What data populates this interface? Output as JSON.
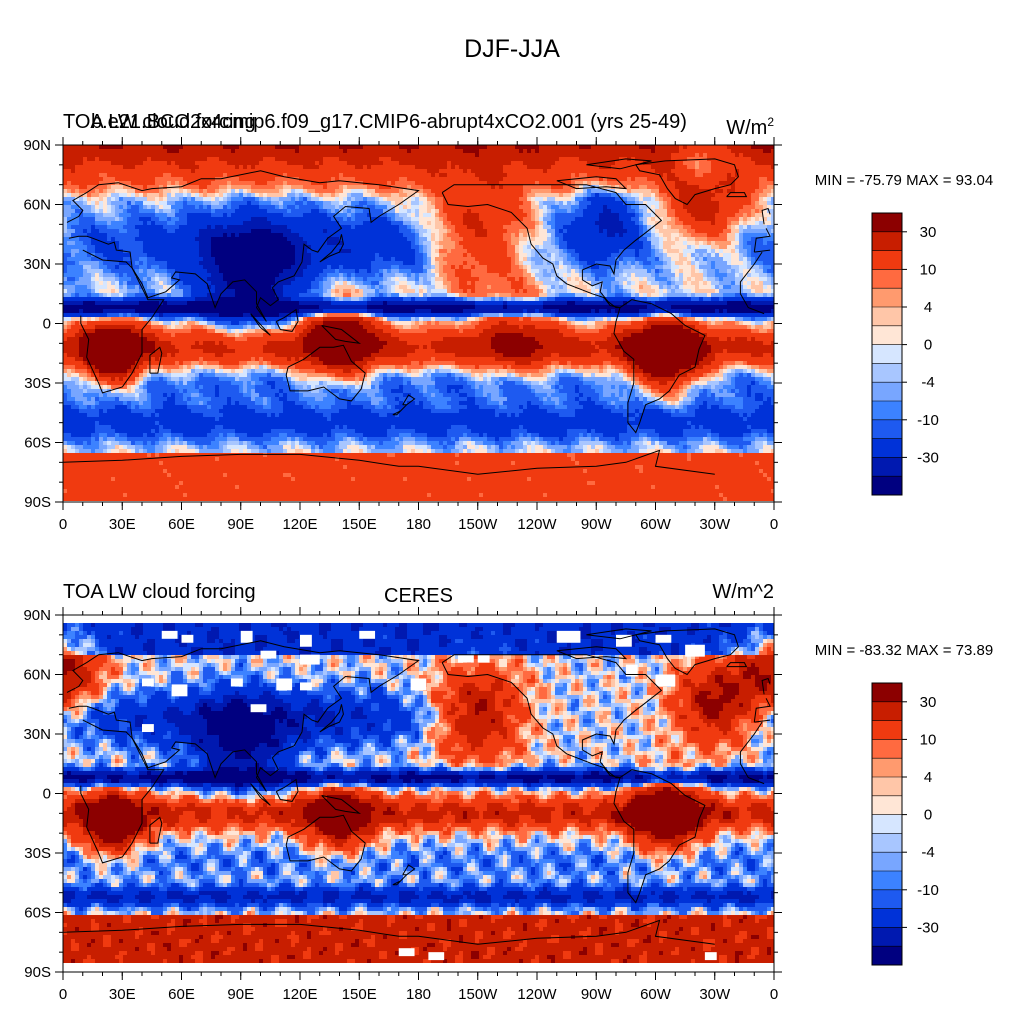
{
  "main_title": "DJF-JJA",
  "colors": {
    "levels": [
      "#000080",
      "#0019b0",
      "#0032d8",
      "#1e5af0",
      "#3c82ff",
      "#78a6ff",
      "#a8c6ff",
      "#d6e6ff",
      "#ffe6d6",
      "#ffc6a8",
      "#ff9a6e",
      "#ff6a40",
      "#f03a10",
      "#c81e00",
      "#8c0000"
    ],
    "land_line": "#000000"
  },
  "chart_data": [
    {
      "type": "heatmap",
      "panel": "model",
      "title_left": "TOA LW cloud forcing",
      "title_left_overlap": "b.e21.BCO2x4cmip6.f09_g17.CMIP6-abrupt4xCO2.001 (yrs 25-49)",
      "title_center": "",
      "units_label": "W/m",
      "units_sup": "2",
      "stats": "MIN = -75.79 MAX =  93.04",
      "min": -75.79,
      "max": 93.04,
      "xlabel": "",
      "ylabel": "",
      "x_ticks": [
        "0",
        "30E",
        "60E",
        "90E",
        "120E",
        "150E",
        "180",
        "150W",
        "120W",
        "90W",
        "60W",
        "30W",
        "0"
      ],
      "y_ticks": [
        "90N",
        "60N",
        "30N",
        "0",
        "30S",
        "60S",
        "90S"
      ],
      "colorbar_labels": [
        "30",
        "10",
        "4",
        "0",
        "-4",
        "-10",
        "-30"
      ],
      "colorbar_label_levels": [
        30,
        10,
        4,
        0,
        -4,
        -10,
        -30
      ]
    },
    {
      "type": "heatmap",
      "panel": "obs",
      "title_left": "TOA LW cloud forcing",
      "title_left_overlap": "",
      "title_center": "CERES",
      "units_label": "W/m^2",
      "units_sup": "",
      "stats": "MIN = -83.32 MAX =  73.89",
      "min": -83.32,
      "max": 73.89,
      "xlabel": "",
      "ylabel": "",
      "x_ticks": [
        "0",
        "30E",
        "60E",
        "90E",
        "120E",
        "150E",
        "180",
        "150W",
        "120W",
        "90W",
        "60W",
        "30W",
        "0"
      ],
      "y_ticks": [
        "90N",
        "60N",
        "30N",
        "0",
        "30S",
        "60S",
        "90S"
      ],
      "colorbar_labels": [
        "30",
        "10",
        "4",
        "0",
        "-4",
        "-10",
        "-30"
      ],
      "colorbar_label_levels": [
        30,
        10,
        4,
        0,
        -4,
        -10,
        -30
      ]
    }
  ]
}
